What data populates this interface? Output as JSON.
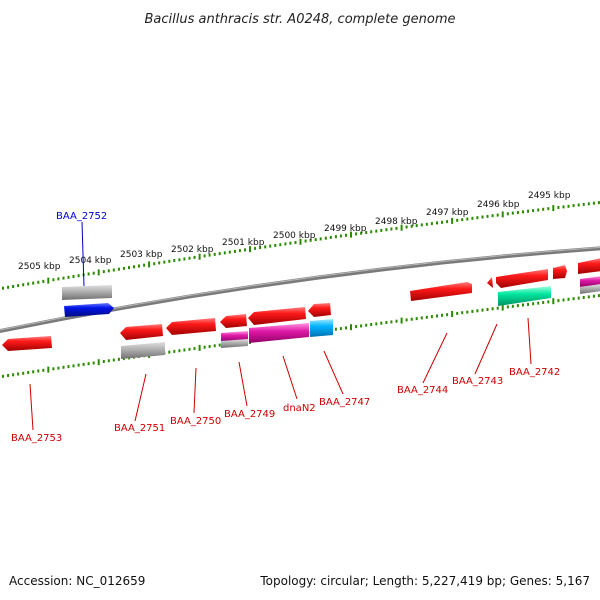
{
  "title": "Bacillus anthracis str. A0248, complete genome",
  "footer": {
    "accession": "Accession: NC_012659",
    "topology": "Topology: circular; Length: 5,227,419 bp; Genes: 5,167"
  },
  "kbp_ticks": [
    "2505 kbp",
    "2504 kbp",
    "2503 kbp",
    "2502 kbp",
    "2501 kbp",
    "2500 kbp",
    "2499 kbp",
    "2498 kbp",
    "2497 kbp",
    "2496 kbp",
    "2495 kbp"
  ],
  "gene_labels": [
    "BAA_2752",
    "BAA_2753",
    "BAA_2751",
    "BAA_2750",
    "BAA_2749",
    "dnaN2",
    "BAA_2747",
    "BAA_2744",
    "BAA_2743",
    "BAA_2742"
  ],
  "colors": {
    "backbone": "#808080",
    "tick": "#2a8a00",
    "gene_red": "#e60000",
    "gene_blue": "#0014e6",
    "gene_gray": "#a0a0a0",
    "gene_magenta": "#e01aa8",
    "gene_cyan": "#00b4ff",
    "gene_green": "#00e0a0",
    "label_red": "#cc0000",
    "label_blue": "#0000cc"
  }
}
